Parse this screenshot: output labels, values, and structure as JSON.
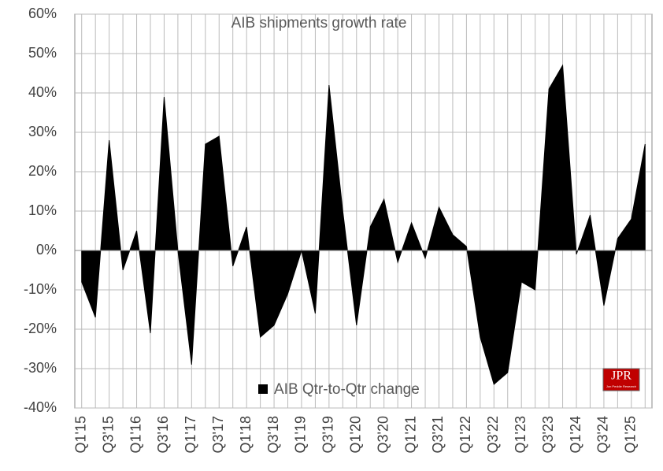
{
  "chart_data": {
    "type": "area",
    "title": "AIB shipments growth rate",
    "logo": "JPR",
    "logo_subtitle": "Jon Peddie Research",
    "categories": [
      "Q1'15",
      null,
      "Q3'15",
      null,
      "Q1'16",
      null,
      "Q3'16",
      null,
      "Q1'17",
      null,
      "Q3'17",
      null,
      "Q1'18",
      null,
      "Q3'18",
      null,
      "Q1'19",
      null,
      "Q3'19",
      null,
      "Q1'20",
      null,
      "Q3'20",
      null,
      "Q1'21",
      null,
      "Q3'21",
      null,
      "Q1'22",
      null,
      "Q3'22",
      null,
      "Q1'23",
      null,
      "Q3'23",
      null,
      "Q1'24",
      null,
      "Q3'24",
      null,
      "Q1'25",
      null
    ],
    "series": [
      {
        "name": "AIB Qtr-to-Qtr change",
        "color": "#000000",
        "values": [
          -8,
          -17,
          28,
          -5,
          5,
          -21,
          39,
          0,
          -29,
          27,
          29,
          -4,
          6,
          -22,
          -19,
          -11,
          0,
          -16,
          42,
          10,
          -19,
          6,
          13,
          -3,
          7,
          -2,
          11,
          4,
          1,
          -22,
          -34,
          -31,
          -8,
          -10,
          41,
          47,
          -1,
          9,
          -14,
          3,
          8,
          27
        ]
      }
    ],
    "ylim": [
      -40,
      60
    ],
    "yticks": [
      {
        "value": -40,
        "label": "-40%"
      },
      {
        "value": -30,
        "label": "-30%"
      },
      {
        "value": -20,
        "label": "-20%"
      },
      {
        "value": -10,
        "label": "-10%"
      },
      {
        "value": 0,
        "label": "0%"
      },
      {
        "value": 10,
        "label": "10%"
      },
      {
        "value": 20,
        "label": "20%"
      },
      {
        "value": 30,
        "label": "30%"
      },
      {
        "value": 40,
        "label": "40%"
      },
      {
        "value": 50,
        "label": "50%"
      },
      {
        "value": 60,
        "label": "60%"
      }
    ],
    "grid": true
  }
}
